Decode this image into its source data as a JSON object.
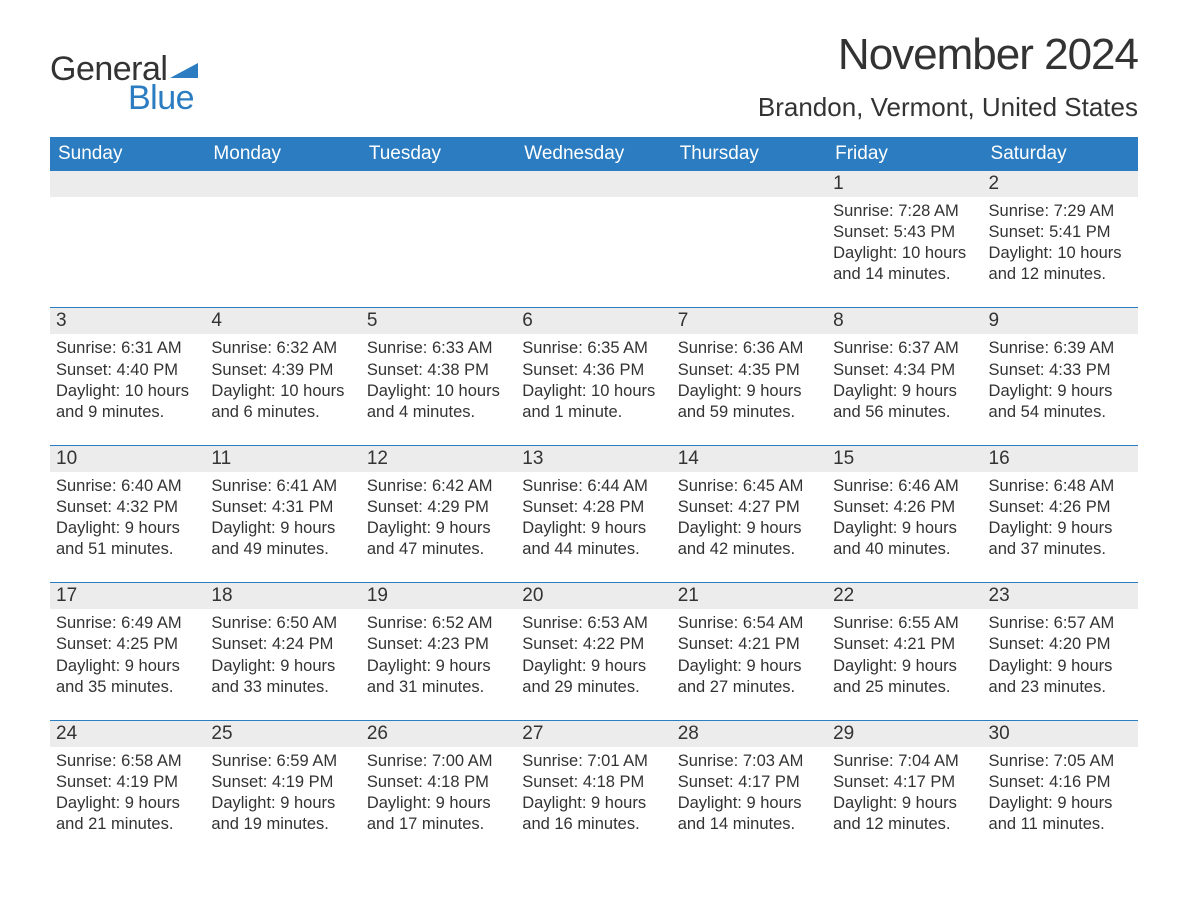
{
  "brand": {
    "word1": "General",
    "word2": "Blue",
    "flag_color": "#2b7cc0",
    "word1_color": "#333333",
    "word2_color": "#2b7cc0"
  },
  "title": "November 2024",
  "location": "Brandon, Vermont, United States",
  "colors": {
    "header_bg": "#2b7cc0",
    "header_text": "#ffffff",
    "row_border": "#2b7cc0",
    "daynum_bg": "#ececec",
    "text": "#333333",
    "background": "#ffffff"
  },
  "fonts": {
    "title_size_pt": 33,
    "location_size_pt": 20,
    "dayheader_size_pt": 14,
    "body_size_pt": 12
  },
  "day_headers": [
    "Sunday",
    "Monday",
    "Tuesday",
    "Wednesday",
    "Thursday",
    "Friday",
    "Saturday"
  ],
  "labels": {
    "sunrise": "Sunrise: ",
    "sunset": "Sunset: ",
    "daylight": "Daylight: "
  },
  "weeks": [
    [
      {
        "empty": true
      },
      {
        "empty": true
      },
      {
        "empty": true
      },
      {
        "empty": true
      },
      {
        "empty": true
      },
      {
        "day": "1",
        "sunrise": "7:28 AM",
        "sunset": "5:43 PM",
        "daylight": "10 hours and 14 minutes."
      },
      {
        "day": "2",
        "sunrise": "7:29 AM",
        "sunset": "5:41 PM",
        "daylight": "10 hours and 12 minutes."
      }
    ],
    [
      {
        "day": "3",
        "sunrise": "6:31 AM",
        "sunset": "4:40 PM",
        "daylight": "10 hours and 9 minutes."
      },
      {
        "day": "4",
        "sunrise": "6:32 AM",
        "sunset": "4:39 PM",
        "daylight": "10 hours and 6 minutes."
      },
      {
        "day": "5",
        "sunrise": "6:33 AM",
        "sunset": "4:38 PM",
        "daylight": "10 hours and 4 minutes."
      },
      {
        "day": "6",
        "sunrise": "6:35 AM",
        "sunset": "4:36 PM",
        "daylight": "10 hours and 1 minute."
      },
      {
        "day": "7",
        "sunrise": "6:36 AM",
        "sunset": "4:35 PM",
        "daylight": "9 hours and 59 minutes."
      },
      {
        "day": "8",
        "sunrise": "6:37 AM",
        "sunset": "4:34 PM",
        "daylight": "9 hours and 56 minutes."
      },
      {
        "day": "9",
        "sunrise": "6:39 AM",
        "sunset": "4:33 PM",
        "daylight": "9 hours and 54 minutes."
      }
    ],
    [
      {
        "day": "10",
        "sunrise": "6:40 AM",
        "sunset": "4:32 PM",
        "daylight": "9 hours and 51 minutes."
      },
      {
        "day": "11",
        "sunrise": "6:41 AM",
        "sunset": "4:31 PM",
        "daylight": "9 hours and 49 minutes."
      },
      {
        "day": "12",
        "sunrise": "6:42 AM",
        "sunset": "4:29 PM",
        "daylight": "9 hours and 47 minutes."
      },
      {
        "day": "13",
        "sunrise": "6:44 AM",
        "sunset": "4:28 PM",
        "daylight": "9 hours and 44 minutes."
      },
      {
        "day": "14",
        "sunrise": "6:45 AM",
        "sunset": "4:27 PM",
        "daylight": "9 hours and 42 minutes."
      },
      {
        "day": "15",
        "sunrise": "6:46 AM",
        "sunset": "4:26 PM",
        "daylight": "9 hours and 40 minutes."
      },
      {
        "day": "16",
        "sunrise": "6:48 AM",
        "sunset": "4:26 PM",
        "daylight": "9 hours and 37 minutes."
      }
    ],
    [
      {
        "day": "17",
        "sunrise": "6:49 AM",
        "sunset": "4:25 PM",
        "daylight": "9 hours and 35 minutes."
      },
      {
        "day": "18",
        "sunrise": "6:50 AM",
        "sunset": "4:24 PM",
        "daylight": "9 hours and 33 minutes."
      },
      {
        "day": "19",
        "sunrise": "6:52 AM",
        "sunset": "4:23 PM",
        "daylight": "9 hours and 31 minutes."
      },
      {
        "day": "20",
        "sunrise": "6:53 AM",
        "sunset": "4:22 PM",
        "daylight": "9 hours and 29 minutes."
      },
      {
        "day": "21",
        "sunrise": "6:54 AM",
        "sunset": "4:21 PM",
        "daylight": "9 hours and 27 minutes."
      },
      {
        "day": "22",
        "sunrise": "6:55 AM",
        "sunset": "4:21 PM",
        "daylight": "9 hours and 25 minutes."
      },
      {
        "day": "23",
        "sunrise": "6:57 AM",
        "sunset": "4:20 PM",
        "daylight": "9 hours and 23 minutes."
      }
    ],
    [
      {
        "day": "24",
        "sunrise": "6:58 AM",
        "sunset": "4:19 PM",
        "daylight": "9 hours and 21 minutes."
      },
      {
        "day": "25",
        "sunrise": "6:59 AM",
        "sunset": "4:19 PM",
        "daylight": "9 hours and 19 minutes."
      },
      {
        "day": "26",
        "sunrise": "7:00 AM",
        "sunset": "4:18 PM",
        "daylight": "9 hours and 17 minutes."
      },
      {
        "day": "27",
        "sunrise": "7:01 AM",
        "sunset": "4:18 PM",
        "daylight": "9 hours and 16 minutes."
      },
      {
        "day": "28",
        "sunrise": "7:03 AM",
        "sunset": "4:17 PM",
        "daylight": "9 hours and 14 minutes."
      },
      {
        "day": "29",
        "sunrise": "7:04 AM",
        "sunset": "4:17 PM",
        "daylight": "9 hours and 12 minutes."
      },
      {
        "day": "30",
        "sunrise": "7:05 AM",
        "sunset": "4:16 PM",
        "daylight": "9 hours and 11 minutes."
      }
    ]
  ]
}
